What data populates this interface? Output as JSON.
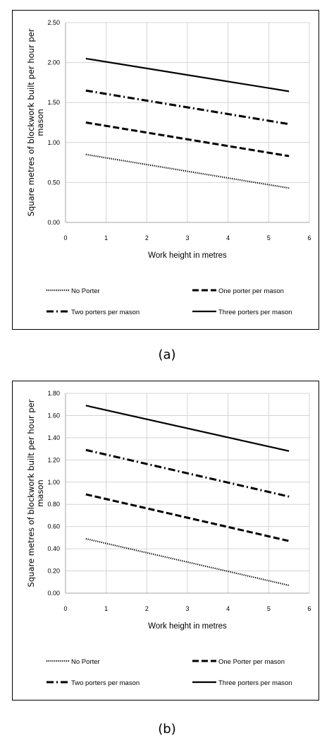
{
  "chart_data": [
    {
      "type": "line",
      "caption": "(a)",
      "xlabel": "Work height in metres",
      "ylabel_lines": [
        "Square metres of blockwork built per hour per",
        "mason"
      ],
      "xlim": [
        0,
        6
      ],
      "ylim": [
        0,
        2.5
      ],
      "xticks": [
        "0",
        "1",
        "2",
        "3",
        "4",
        "5",
        "6"
      ],
      "yticks": [
        "0.00",
        "0.50",
        "1.00",
        "1.50",
        "2.00",
        "2.50"
      ],
      "grid": true,
      "legend_position": "bottom",
      "series": [
        {
          "name": "No Porter",
          "style": "dotted",
          "x": [
            0.5,
            5.5
          ],
          "y": [
            0.85,
            0.43
          ]
        },
        {
          "name": "One porter per mason",
          "style": "dashed",
          "x": [
            0.5,
            5.5
          ],
          "y": [
            1.25,
            0.83
          ]
        },
        {
          "name": "Two porters per mason",
          "style": "dashdot",
          "x": [
            0.5,
            5.5
          ],
          "y": [
            1.65,
            1.23
          ]
        },
        {
          "name": "Three porters per mason",
          "style": "solid",
          "x": [
            0.5,
            5.5
          ],
          "y": [
            2.05,
            1.64
          ]
        }
      ]
    },
    {
      "type": "line",
      "caption": "(b)",
      "xlabel": "Work height in metres",
      "ylabel_lines": [
        "Square metres of blockwork built per hour per",
        "mason"
      ],
      "xlim": [
        0,
        6
      ],
      "ylim": [
        0,
        1.8
      ],
      "xticks": [
        "0",
        "1",
        "2",
        "3",
        "4",
        "5",
        "6"
      ],
      "yticks": [
        "0.00",
        "0.20",
        "0.40",
        "0.60",
        "0.80",
        "1.00",
        "1.20",
        "1.40",
        "1.60",
        "1.80"
      ],
      "grid": true,
      "legend_position": "bottom",
      "series": [
        {
          "name": "No Porter",
          "style": "dotted",
          "x": [
            0.5,
            5.5
          ],
          "y": [
            0.49,
            0.07
          ]
        },
        {
          "name": "One Porter per mason",
          "style": "dashed",
          "x": [
            0.5,
            5.5
          ],
          "y": [
            0.89,
            0.47
          ]
        },
        {
          "name": "Two porters per mason",
          "style": "dashdot",
          "x": [
            0.5,
            5.5
          ],
          "y": [
            1.29,
            0.87
          ]
        },
        {
          "name": "Three porters per mason",
          "style": "solid",
          "x": [
            0.5,
            5.5
          ],
          "y": [
            1.69,
            1.28
          ]
        }
      ]
    }
  ]
}
